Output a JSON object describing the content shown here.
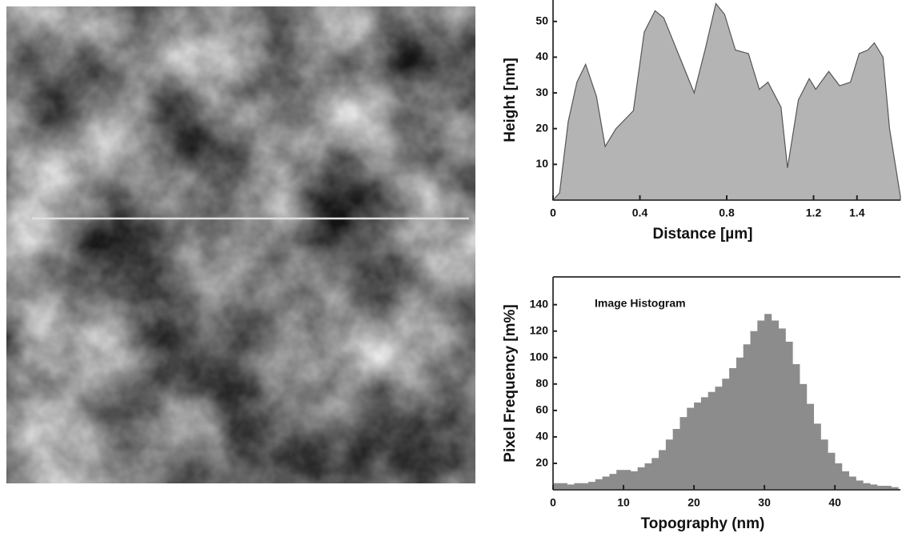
{
  "chart_data": [
    {
      "type": "area",
      "xlabel": "Distance [µm]",
      "ylabel": "Height [nm]",
      "x": [
        0,
        0.03,
        0.07,
        0.11,
        0.15,
        0.2,
        0.24,
        0.29,
        0.37,
        0.42,
        0.47,
        0.51,
        0.59,
        0.65,
        0.7,
        0.75,
        0.79,
        0.84,
        0.9,
        0.95,
        0.99,
        1.05,
        1.08,
        1.13,
        1.18,
        1.21,
        1.27,
        1.32,
        1.37,
        1.41,
        1.45,
        1.48,
        1.52,
        1.55,
        1.6
      ],
      "values": [
        0,
        2,
        22,
        33,
        38,
        29,
        15,
        20,
        25,
        47,
        53,
        51,
        39,
        30,
        42,
        55,
        52,
        42,
        41,
        31,
        33,
        26,
        9,
        28,
        34,
        31,
        36,
        32,
        33,
        41,
        42,
        44,
        40,
        20,
        1
      ],
      "color": "#b4b4b4",
      "xlim": [
        0,
        1.6
      ],
      "ylim": [
        0,
        56
      ],
      "xticks": [
        0,
        0.4,
        0.8,
        1.2,
        1.4
      ],
      "yticks": [
        10,
        20,
        30,
        40,
        50
      ]
    },
    {
      "type": "histogram",
      "xlabel": "Topography (nm)",
      "ylabel": "Pixel Frequency [m%]",
      "annotation": "Image Histogram",
      "bins": [
        0,
        1,
        2,
        3,
        4,
        5,
        6,
        7,
        8,
        9,
        10,
        11,
        12,
        13,
        14,
        15,
        16,
        17,
        18,
        19,
        20,
        21,
        22,
        23,
        24,
        25,
        26,
        27,
        28,
        29,
        30,
        31,
        32,
        33,
        34,
        35,
        36,
        37,
        38,
        39,
        40,
        41,
        42,
        43,
        44,
        45,
        46,
        47,
        48,
        49
      ],
      "values": [
        5,
        5,
        4,
        5,
        5,
        6,
        8,
        10,
        12,
        15,
        15,
        14,
        17,
        20,
        24,
        30,
        38,
        46,
        55,
        62,
        66,
        70,
        74,
        78,
        84,
        92,
        100,
        110,
        120,
        128,
        133,
        128,
        122,
        112,
        95,
        80,
        65,
        50,
        38,
        28,
        20,
        14,
        10,
        7,
        5,
        4,
        3,
        3,
        2
      ],
      "color": "#8c8c8c",
      "xlim": [
        0,
        49.3
      ],
      "ylim": [
        0,
        161
      ],
      "xticks": [
        0,
        10,
        20,
        30,
        40
      ],
      "yticks": [
        20,
        40,
        60,
        80,
        100,
        120,
        140
      ]
    }
  ]
}
